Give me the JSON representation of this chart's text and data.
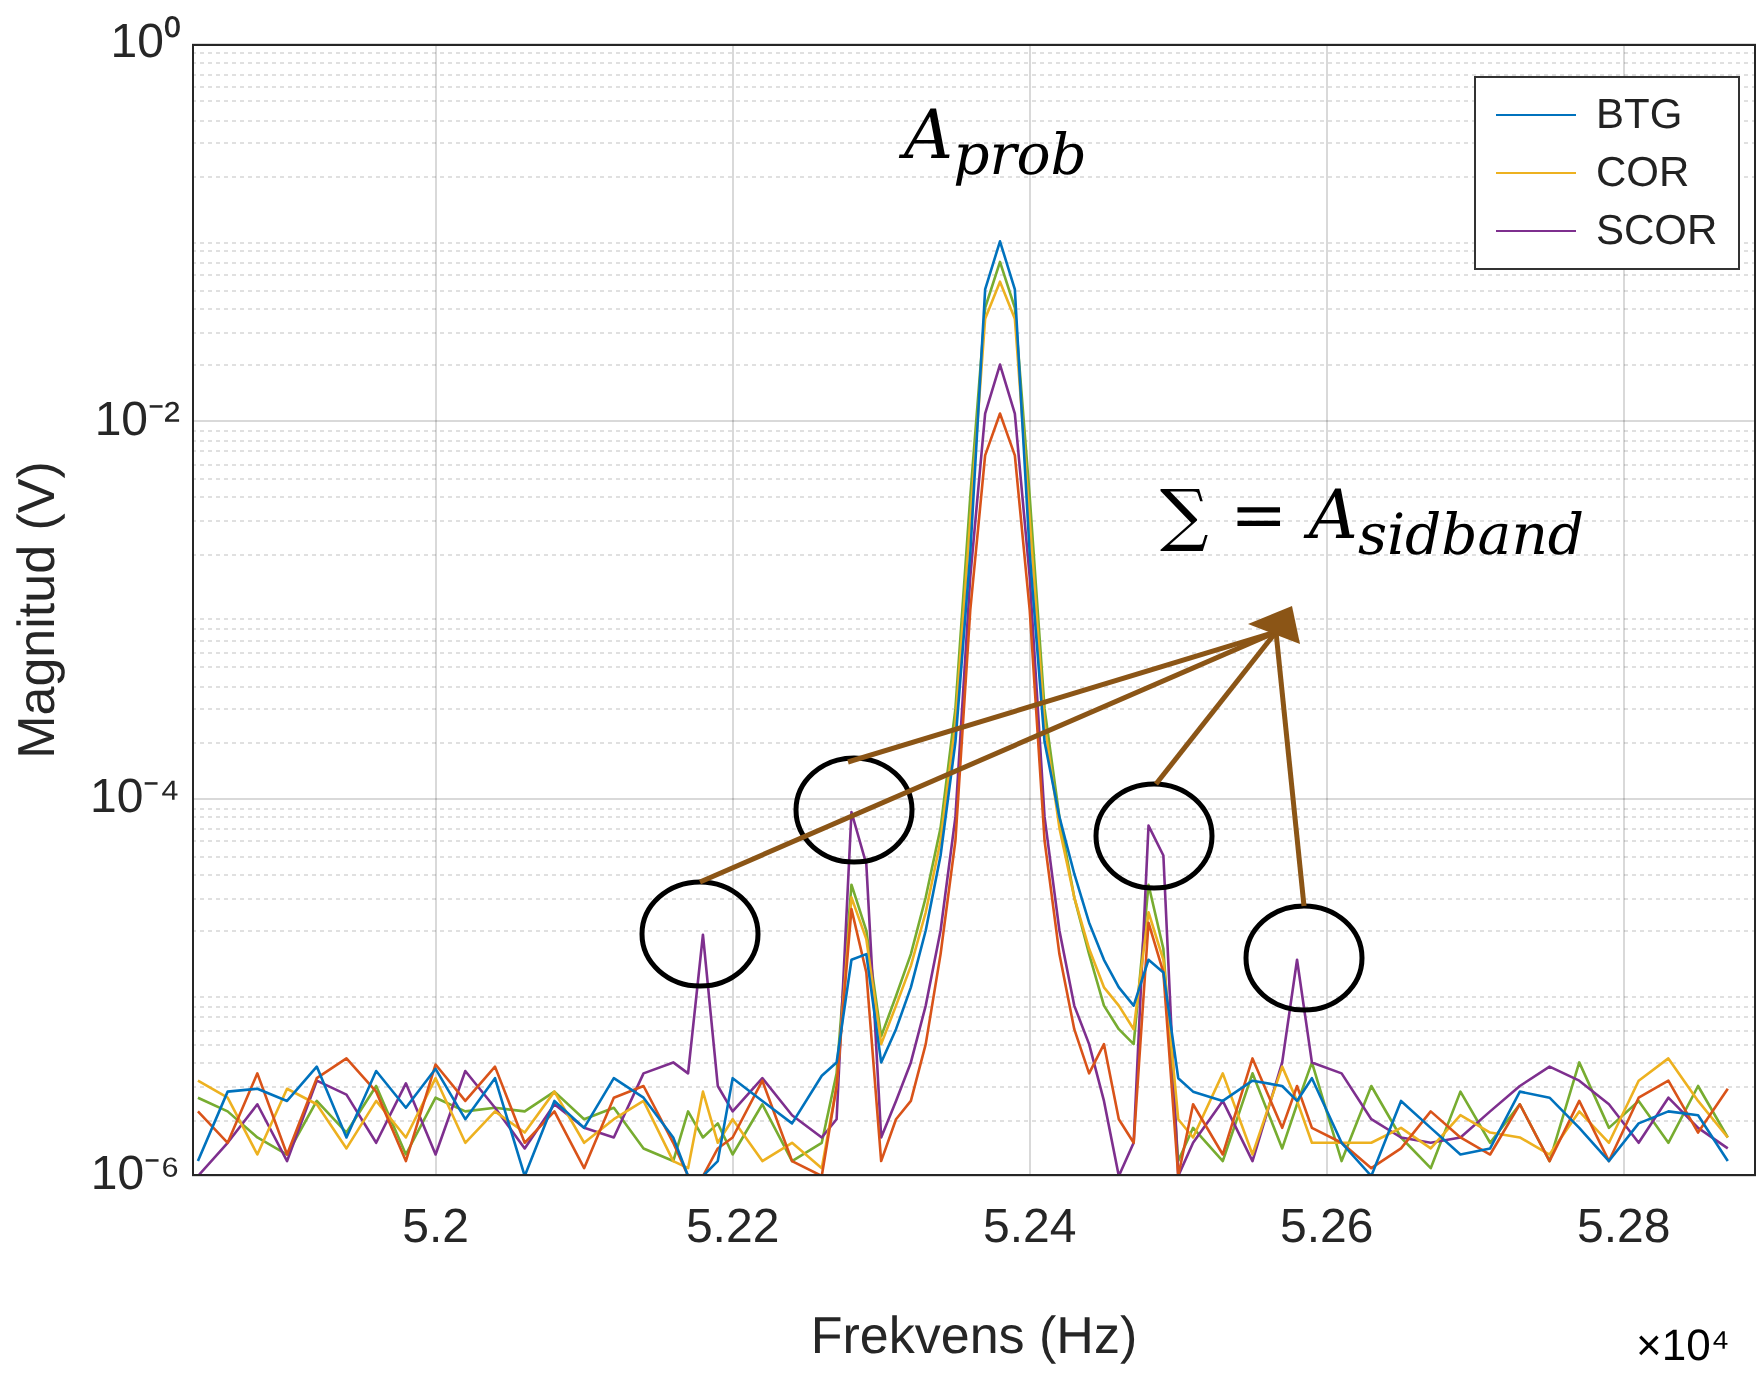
{
  "chart_data": {
    "type": "line",
    "xlabel": "Frekvens (Hz)",
    "ylabel": "Magnitud (V)",
    "annotations": [
      "A$_{prob}$",
      "∑ = A$_{sidband}$",
      "×10⁴"
    ],
    "x": [
      5.184,
      5.186,
      5.188,
      5.19,
      5.192,
      5.194,
      5.196,
      5.198,
      5.2,
      5.202,
      5.204,
      5.206,
      5.208,
      5.21,
      5.212,
      5.214,
      5.216,
      5.217,
      5.218,
      5.219,
      5.22,
      5.222,
      5.224,
      5.226,
      5.227,
      5.228,
      5.229,
      5.23,
      5.231,
      5.232,
      5.233,
      5.234,
      5.235,
      5.236,
      5.237,
      5.238,
      5.239,
      5.24,
      5.241,
      5.242,
      5.243,
      5.244,
      5.245,
      5.246,
      5.247,
      5.248,
      5.249,
      5.25,
      5.251,
      5.253,
      5.255,
      5.257,
      5.258,
      5.259,
      5.261,
      5.263,
      5.265,
      5.267,
      5.269,
      5.271,
      5.273,
      5.275,
      5.277,
      5.279,
      5.281,
      5.283,
      5.285,
      5.287
    ],
    "xlim": [
      5.1836,
      5.2889
    ],
    "xticks": [
      5.2,
      5.22,
      5.24,
      5.26,
      5.28
    ],
    "ylim": [
      1e-06,
      1
    ],
    "yticks": [
      {
        "value": 1e-06,
        "label": "10⁻⁶"
      },
      {
        "value": 0.0001,
        "label": "10⁻⁴"
      },
      {
        "value": 0.01,
        "label": "10⁻²"
      },
      {
        "value": 1,
        "label": "10⁰"
      }
    ],
    "log": "y",
    "grid": true,
    "legend": "top right",
    "marker": "none",
    "line_style": "solid",
    "series": [
      {
        "name": "BTG",
        "color": "#0072bd",
        "values": [
          1.2e-06,
          2.8e-06,
          2.9e-06,
          2.5e-06,
          3.8e-06,
          1.6e-06,
          3.6e-06,
          2.3e-06,
          3.7e-06,
          2e-06,
          3.3e-06,
          1e-06,
          2.5e-06,
          1.8e-06,
          3.3e-06,
          2.6e-06,
          1.6e-06,
          1e-06,
          1e-06,
          1.2e-06,
          3.3e-06,
          2.5e-06,
          1.9e-06,
          3.4e-06,
          4e-06,
          1.4e-05,
          1.5e-05,
          4e-06,
          6e-06,
          1e-05,
          2e-05,
          5e-05,
          0.0002,
          0.002,
          0.05,
          0.09,
          0.05,
          0.002,
          0.0002,
          8e-05,
          4e-05,
          2.2e-05,
          1.4e-05,
          1e-05,
          8e-06,
          1.4e-05,
          1.2e-05,
          3.3e-06,
          2.8e-06,
          2.5e-06,
          3.2e-06,
          3e-06,
          2.5e-06,
          3.3e-06,
          1.5e-06,
          1e-06,
          2.5e-06,
          1.8e-06,
          1.3e-06,
          1.4e-06,
          2.8e-06,
          2.6e-06,
          1.8e-06,
          1.2e-06,
          1.9e-06,
          2.2e-06,
          2.1e-06,
          1.2e-06
        ]
      },
      {
        "color": "#d95319",
        "values": [
          2.2e-06,
          1.5e-06,
          3.5e-06,
          1.3e-06,
          3.3e-06,
          4.2e-06,
          2.8e-06,
          1.2e-06,
          3.9e-06,
          2.5e-06,
          3.8e-06,
          1.5e-06,
          2.2e-06,
          1.1e-06,
          2.6e-06,
          3e-06,
          1.5e-06,
          1e-06,
          1e-06,
          1.4e-06,
          1.6e-06,
          3.2e-06,
          1.2e-06,
          1e-06,
          3e-06,
          2.6e-05,
          1.2e-05,
          1.2e-06,
          2e-06,
          2.5e-06,
          5e-06,
          1.5e-05,
          6e-05,
          0.001,
          0.0066,
          0.011,
          0.0066,
          0.001,
          6e-05,
          1.5e-05,
          6e-06,
          3.5e-06,
          5e-06,
          2e-06,
          1.5e-06,
          2.2e-05,
          1.2e-05,
          1e-06,
          2.4e-06,
          1.3e-06,
          4.2e-06,
          1.8e-06,
          3e-06,
          1.8e-06,
          1.5e-06,
          1.1e-06,
          1.4e-06,
          2.2e-06,
          1.6e-06,
          1.3e-06,
          2.4e-06,
          1.2e-06,
          2.5e-06,
          1.2e-06,
          2.6e-06,
          3.2e-06,
          1.7e-06,
          2.9e-06
        ]
      },
      {
        "name": "COR",
        "color": "#edb120",
        "values": [
          3.2e-06,
          2.6e-06,
          1.3e-06,
          2.9e-06,
          2.4e-06,
          1.4e-06,
          2.5e-06,
          1.6e-06,
          3.3e-06,
          1.5e-06,
          2.2e-06,
          1.7e-06,
          2.8e-06,
          1.5e-06,
          2e-06,
          2.5e-06,
          1.2e-06,
          1.1e-06,
          2.8e-06,
          1.5e-06,
          2e-06,
          1.2e-06,
          1.5e-06,
          1.1e-06,
          3e-06,
          3e-05,
          1.8e-05,
          5e-06,
          8e-06,
          1.3e-05,
          2.5e-05,
          6e-05,
          0.00025,
          0.003,
          0.035,
          0.055,
          0.035,
          0.003,
          0.00025,
          7e-05,
          3e-05,
          1.6e-05,
          1e-05,
          8e-06,
          6e-06,
          2.5e-05,
          1.4e-05,
          2e-06,
          1.6e-06,
          3.5e-06,
          1.3e-06,
          3.8e-06,
          2.5e-06,
          1.5e-06,
          1.5e-06,
          1.5e-06,
          1.8e-06,
          1.4e-06,
          2.1e-06,
          1.7e-06,
          1.6e-06,
          1.3e-06,
          2.2e-06,
          1.5e-06,
          3.2e-06,
          4.2e-06,
          2.5e-06,
          1.6e-06
        ]
      },
      {
        "name": "SCOR",
        "color": "#7e2f8e",
        "values": [
          1e-06,
          1.5e-06,
          2.4e-06,
          1.2e-06,
          3.2e-06,
          2.7e-06,
          1.5e-06,
          3.1e-06,
          1.3e-06,
          3.6e-06,
          2.3e-06,
          1.4e-06,
          2.4e-06,
          1.8e-06,
          1.6e-06,
          3.5e-06,
          4e-06,
          3.5e-06,
          1.9e-05,
          3e-06,
          2.2e-06,
          3.3e-06,
          2.1e-06,
          1.6e-06,
          2e-06,
          8.5e-05,
          4.5e-05,
          1.6e-06,
          2.5e-06,
          4e-06,
          8e-06,
          2e-05,
          8e-05,
          0.0015,
          0.011,
          0.02,
          0.011,
          0.0015,
          8e-05,
          2e-05,
          8e-06,
          5e-06,
          2.5e-06,
          1e-06,
          1.5e-06,
          7.2e-05,
          5e-05,
          1e-06,
          1.5e-06,
          2.5e-06,
          1.2e-06,
          4e-06,
          1.4e-05,
          4e-06,
          3.5e-06,
          2e-06,
          1.6e-06,
          1.5e-06,
          1.6e-06,
          2.2e-06,
          3e-06,
          3.8e-06,
          3.2e-06,
          2.4e-06,
          1.5e-06,
          2.6e-06,
          1.8e-06,
          1.4e-06
        ]
      },
      {
        "color": "#77ac30",
        "values": [
          2.6e-06,
          2.2e-06,
          1.6e-06,
          1.3e-06,
          2.5e-06,
          1.7e-06,
          3e-06,
          1.3e-06,
          2.6e-06,
          2.2e-06,
          2.3e-06,
          2.2e-06,
          2.8e-06,
          2e-06,
          2.3e-06,
          1.4e-06,
          1.2e-06,
          2.2e-06,
          1.6e-06,
          1.9e-06,
          1.3e-06,
          2.4e-06,
          1.2e-06,
          1.5e-06,
          3.5e-06,
          3.5e-05,
          2e-05,
          5.5e-06,
          9e-06,
          1.5e-05,
          3e-05,
          7e-05,
          0.0003,
          0.004,
          0.04,
          0.07,
          0.04,
          0.004,
          0.0003,
          8e-05,
          3e-05,
          1.5e-05,
          8e-06,
          6e-06,
          5e-06,
          3.5e-05,
          1.6e-05,
          1.2e-06,
          1.8e-06,
          1.2e-06,
          3.5e-06,
          1.4e-06,
          2.4e-06,
          4e-06,
          1.2e-06,
          3e-06,
          1.6e-06,
          1.1e-06,
          2.8e-06,
          1.5e-06,
          2.4e-06,
          1.2e-06,
          4e-06,
          1.8e-06,
          2.5e-06,
          1.5e-06,
          3e-06,
          1.6e-06
        ]
      }
    ]
  }
}
